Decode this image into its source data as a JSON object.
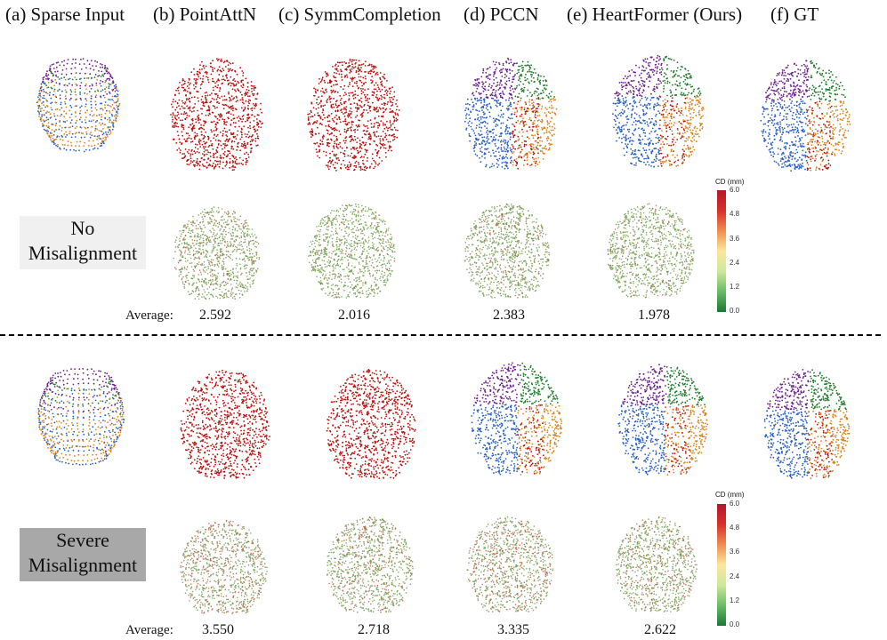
{
  "headers": [
    "(a) Sparse Input",
    "(b) PointAttN",
    "(c) SymmCompletion",
    "(d) PCCN",
    "(e) HeartFormer (Ours)",
    "(f) GT"
  ],
  "conditions": {
    "none": {
      "label_line1": "No",
      "label_line2": "Misalignment"
    },
    "severe": {
      "label_line1": "Severe",
      "label_line2": "Misalignment"
    }
  },
  "averages": {
    "label": "Average:",
    "none": [
      "2.592",
      "2.016",
      "2.383",
      "1.978"
    ],
    "severe": [
      "3.550",
      "2.718",
      "3.335",
      "2.622"
    ]
  },
  "colorbar": {
    "title": "CD (mm)",
    "ticks": [
      "6.0",
      "4.8",
      "3.6",
      "2.4",
      "1.2",
      "0.0"
    ],
    "min": 0.0,
    "max": 6.0
  },
  "colors": {
    "red_cloud": "#b5130f",
    "purple": "#6a1f8a",
    "green": "#1f7a2a",
    "blue": "#2a5fbf",
    "orange": "#d9851f",
    "error_green": "#6e9a4a",
    "error_red": "#b85a3c"
  }
}
